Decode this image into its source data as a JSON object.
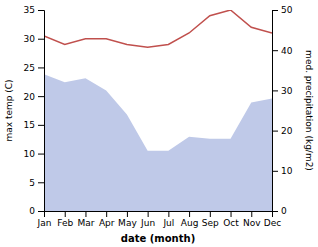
{
  "chart_data": {
    "type": "line",
    "categories": [
      "Jan",
      "Feb",
      "Mar",
      "Apr",
      "May",
      "Jun",
      "Jul",
      "Aug",
      "Sep",
      "Oct",
      "Nov",
      "Dec"
    ],
    "xlabel": "date (month)",
    "ylabel": "max temp (C)",
    "y2label": "med. precipitation (kg/m2)",
    "ylim": [
      0,
      35
    ],
    "yticks": [
      0,
      5,
      10,
      15,
      20,
      25,
      30,
      35
    ],
    "y2lim": [
      0,
      50
    ],
    "y2ticks": [
      0,
      10,
      20,
      30,
      40,
      50
    ],
    "grid": false,
    "series": [
      {
        "type": "area",
        "axis": "y2",
        "color": "#bfc9e8",
        "values": [
          34,
          32,
          33,
          30,
          24,
          15,
          15,
          18.5,
          18,
          18,
          27,
          28
        ]
      },
      {
        "type": "line",
        "color": "#c0504d",
        "values": [
          30.5,
          29,
          30,
          30,
          29,
          28.5,
          29,
          31,
          34,
          35,
          32,
          31
        ]
      }
    ]
  }
}
